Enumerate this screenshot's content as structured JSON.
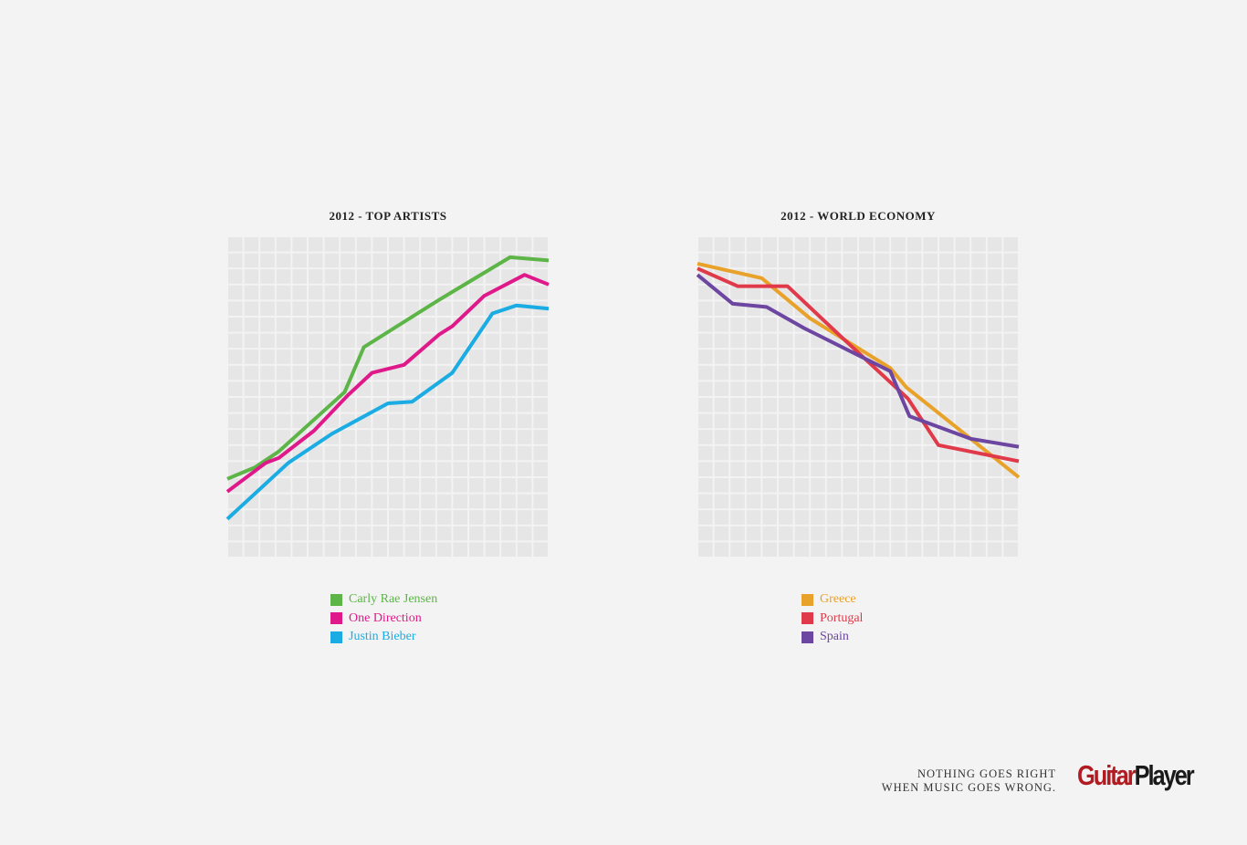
{
  "chart_data": [
    {
      "type": "line",
      "title": "2012 - TOP ARTISTS",
      "xlabel": "",
      "ylabel": "",
      "xlim": [
        0,
        20
      ],
      "ylim": [
        0,
        20
      ],
      "grid": true,
      "legend": "bottom",
      "series": [
        {
          "name": "Carly Rae Jensen",
          "color": "#5cb546",
          "points": [
            [
              0,
              4.9
            ],
            [
              1.7,
              5.6
            ],
            [
              3.2,
              6.6
            ],
            [
              7.3,
              10.3
            ],
            [
              8.5,
              13.1
            ],
            [
              13.1,
              16.0
            ],
            [
              17.6,
              18.7
            ],
            [
              20,
              18.5
            ]
          ]
        },
        {
          "name": "One Direction",
          "color": "#e0198a",
          "points": [
            [
              0,
              4.1
            ],
            [
              2.4,
              5.9
            ],
            [
              3.2,
              6.2
            ],
            [
              5.4,
              7.9
            ],
            [
              7.5,
              10.1
            ],
            [
              9.0,
              11.5
            ],
            [
              11.0,
              12.0
            ],
            [
              13.2,
              13.9
            ],
            [
              14.0,
              14.4
            ],
            [
              16.0,
              16.3
            ],
            [
              18.5,
              17.6
            ],
            [
              20,
              17.0
            ]
          ]
        },
        {
          "name": "Justin Bieber",
          "color": "#1aace3",
          "points": [
            [
              0,
              2.4
            ],
            [
              3.8,
              5.9
            ],
            [
              6.5,
              7.7
            ],
            [
              10.0,
              9.6
            ],
            [
              11.5,
              9.7
            ],
            [
              14.0,
              11.5
            ],
            [
              16.5,
              15.2
            ],
            [
              18.0,
              15.7
            ],
            [
              20,
              15.5
            ]
          ]
        }
      ]
    },
    {
      "type": "line",
      "title": "2012 - WORLD ECONOMY",
      "xlabel": "",
      "ylabel": "",
      "xlim": [
        0,
        20
      ],
      "ylim": [
        0,
        20
      ],
      "grid": true,
      "legend": "bottom",
      "series": [
        {
          "name": "Greece",
          "color": "#e8a22a",
          "points": [
            [
              0,
              18.3
            ],
            [
              4.0,
              17.4
            ],
            [
              7.0,
              14.9
            ],
            [
              12.0,
              11.8
            ],
            [
              13.0,
              10.6
            ],
            [
              20,
              5.0
            ]
          ]
        },
        {
          "name": "Portugal",
          "color": "#e03a4a",
          "points": [
            [
              0,
              18.0
            ],
            [
              2.5,
              16.9
            ],
            [
              5.6,
              16.9
            ],
            [
              9.0,
              13.7
            ],
            [
              13.1,
              9.9
            ],
            [
              15.0,
              7.0
            ],
            [
              20,
              6.0
            ]
          ]
        },
        {
          "name": "Spain",
          "color": "#6c46a0",
          "points": [
            [
              0,
              17.6
            ],
            [
              2.2,
              15.8
            ],
            [
              4.3,
              15.6
            ],
            [
              6.6,
              14.3
            ],
            [
              12.0,
              11.6
            ],
            [
              13.2,
              8.8
            ],
            [
              17.0,
              7.4
            ],
            [
              20,
              6.9
            ]
          ]
        }
      ]
    }
  ],
  "legend_left": [
    {
      "label": "Carly Rae Jensen",
      "color": "#5cb546"
    },
    {
      "label": "One Direction",
      "color": "#e0198a"
    },
    {
      "label": "Justin Bieber",
      "color": "#1aace3"
    }
  ],
  "legend_right": [
    {
      "label": "Greece",
      "color": "#e8a22a"
    },
    {
      "label": "Portugal",
      "color": "#e03a4a"
    },
    {
      "label": "Spain",
      "color": "#6c46a0"
    }
  ],
  "tagline": {
    "line1": "NOTHING GOES RIGHT",
    "line2": "WHEN MUSIC GOES WRONG."
  },
  "logo": {
    "part1": "Guitar",
    "part2": "Player",
    "color1": "#b01c22",
    "color2": "#1a1a1a"
  },
  "colors": {
    "background": "#f3f3f3",
    "grid_cell": "#e6e6e6"
  }
}
